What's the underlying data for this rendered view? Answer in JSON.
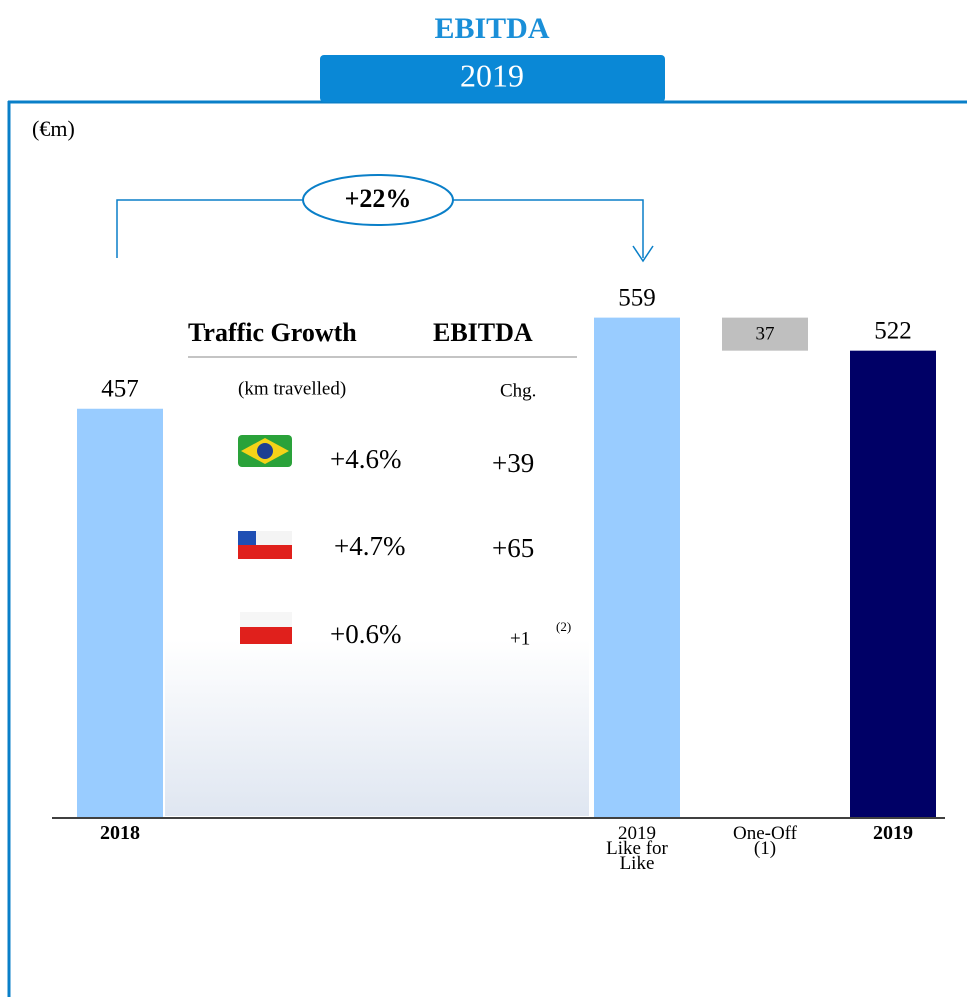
{
  "chart_data": {
    "type": "waterfall",
    "title": "EBITDA",
    "subtitle": "2019",
    "unit_label": "(€m)",
    "annotation": "+22%",
    "categories": [
      "2018",
      "2019\nLike for\nLike",
      "One-Off\n(1)",
      "2019"
    ],
    "values": [
      457,
      559,
      37,
      522
    ],
    "measures": [
      "total",
      "total",
      "decrease",
      "total"
    ],
    "colors": [
      "#99ccff",
      "#99ccff",
      "#bfbfbf",
      "#000066"
    ],
    "ylim": [
      0,
      600
    ]
  },
  "table": {
    "title": [
      "Traffic Growth",
      "EBITDA"
    ],
    "subheaders": [
      "(km travelled)",
      "Chg."
    ],
    "rows": [
      [
        "+4.6%",
        "+39"
      ],
      [
        "+4.7%",
        "+65"
      ],
      [
        "+0.6%",
        "+1"
      ]
    ],
    "footnote": "(2)"
  }
}
